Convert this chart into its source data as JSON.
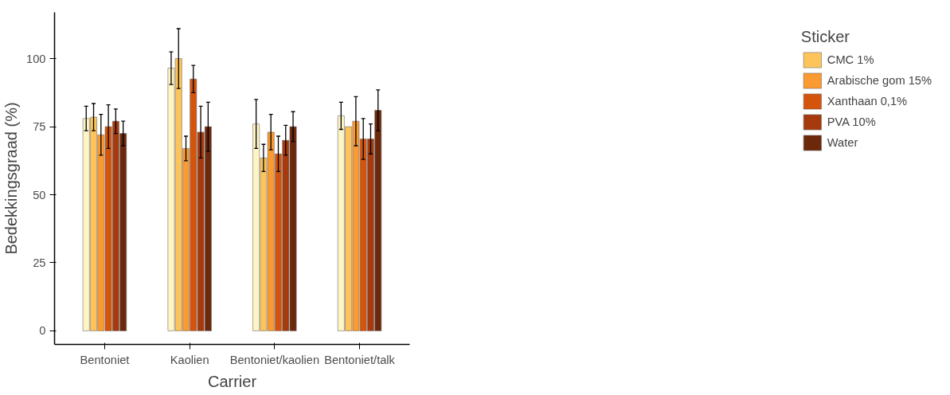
{
  "chart_data": {
    "type": "bar",
    "xlabel": "Carrier",
    "ylabel": "Bedekkingsgraad (%)",
    "legend_title": "Sticker",
    "categories": [
      "Bentoniet",
      "Kaolien",
      "Bentoniet/kaolien",
      "Bentoniet/talk"
    ],
    "series": [
      {
        "color": "#fff4c4",
        "values": [
          78,
          96.5,
          76,
          79
        ],
        "errors": [
          4.5,
          6,
          9,
          5
        ]
      },
      {
        "name": "CMC 1%",
        "color": "#fec45c",
        "values": [
          78.5,
          100,
          63.5,
          75
        ],
        "errors": [
          5,
          11,
          5,
          null
        ]
      },
      {
        "name": "Arabische gom 15%",
        "color": "#fb9a30",
        "values": [
          72,
          67,
          73,
          77
        ],
        "errors": [
          7.5,
          4.5,
          6.5,
          9
        ]
      },
      {
        "name": "Xanthaan 0,1%",
        "color": "#d4540c",
        "values": [
          75,
          92.5,
          65,
          70.5
        ],
        "errors": [
          8,
          5,
          6.5,
          7.5
        ]
      },
      {
        "name": "PVA 10%",
        "color": "#a63a0c",
        "values": [
          77,
          73,
          70,
          70.5
        ],
        "errors": [
          4.5,
          9.5,
          5.5,
          5.5
        ]
      },
      {
        "name": "Water",
        "color": "#6c280b",
        "values": [
          72.5,
          75,
          75,
          81
        ],
        "errors": [
          4.5,
          9,
          5.5,
          7.5
        ]
      }
    ],
    "ylim": [
      -5,
      117
    ],
    "yticks": [
      0,
      25,
      50,
      75,
      100
    ],
    "grid": false,
    "legend": "right"
  }
}
